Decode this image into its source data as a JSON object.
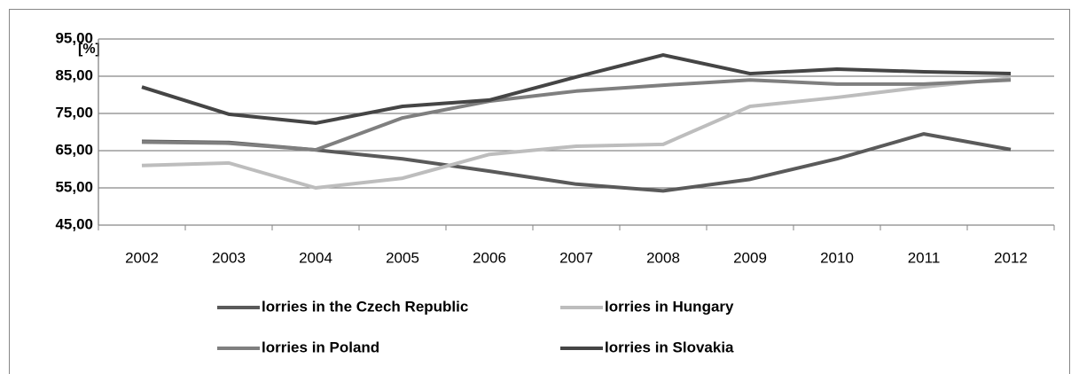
{
  "chart_data": {
    "type": "line",
    "y_label": "[%]",
    "categories": [
      "2002",
      "2003",
      "2004",
      "2005",
      "2006",
      "2007",
      "2008",
      "2009",
      "2010",
      "2011",
      "2012"
    ],
    "series": [
      {
        "name": "lorries in the Czech Republic",
        "color": "#5a5a5a",
        "values": [
          67.5,
          67.2,
          65.2,
          62.8,
          59.5,
          56.0,
          54.2,
          57.3,
          62.8,
          69.5,
          65.3
        ]
      },
      {
        "name": "lorries in Hungary",
        "color": "#bdbdbd",
        "values": [
          61.0,
          61.7,
          55.0,
          57.6,
          64.0,
          66.2,
          66.7,
          76.9,
          79.3,
          82.1,
          84.5
        ]
      },
      {
        "name": "lorries in Poland",
        "color": "#7f7f7f",
        "values": [
          67.3,
          67.0,
          65.2,
          73.8,
          78.3,
          81.0,
          82.6,
          84.0,
          82.9,
          82.9,
          84.0
        ]
      },
      {
        "name": "lorries in Slovakia",
        "color": "#454545",
        "values": [
          82.1,
          74.8,
          72.4,
          76.9,
          78.6,
          84.8,
          90.7,
          85.7,
          86.9,
          86.2,
          85.7
        ]
      }
    ],
    "ylim": [
      45,
      95
    ],
    "yticks": [
      {
        "value": 45,
        "label": "45,00"
      },
      {
        "value": 55,
        "label": "55,00"
      },
      {
        "value": 65,
        "label": "65,00"
      },
      {
        "value": 75,
        "label": "75,00"
      },
      {
        "value": 85,
        "label": "85,00"
      },
      {
        "value": 95,
        "label": "95,00"
      }
    ],
    "grid": true,
    "legend": "bottom"
  }
}
